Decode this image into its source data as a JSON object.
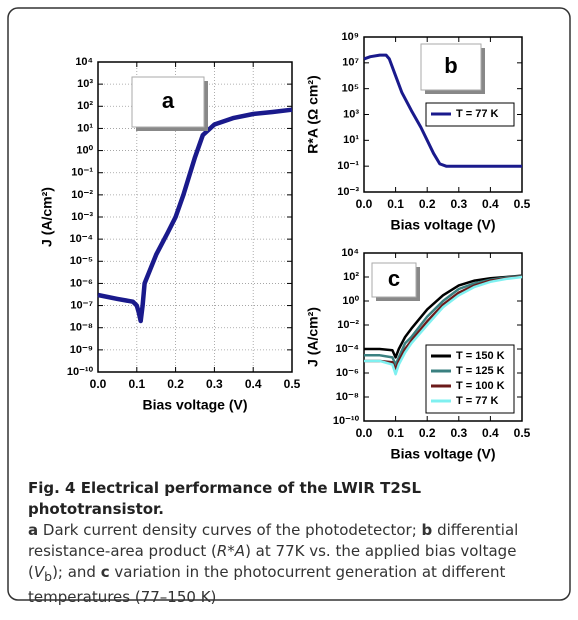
{
  "chart_data": [
    {
      "type": "line",
      "annotation": "a",
      "xlabel": "Bias voltage (V)",
      "ylabel": "J (A/cm²)",
      "log_y": true,
      "grid": true,
      "color": "#1a1a8c",
      "x": [
        0,
        0.05,
        0.09,
        0.1,
        0.105,
        0.11,
        0.115,
        0.12,
        0.15,
        0.18,
        0.2,
        0.22,
        0.25,
        0.27,
        0.3,
        0.35,
        0.4,
        0.45,
        0.5
      ],
      "values": [
        3e-07,
        2e-07,
        1.5e-07,
        1e-07,
        5e-08,
        2e-08,
        1e-07,
        1e-06,
        2e-05,
        0.0002,
        0.001,
        0.01,
        0.5,
        5,
        15,
        30,
        45,
        55,
        70
      ],
      "xlim": [
        0,
        0.5
      ],
      "xticks": [
        {
          "value": 0,
          "label": "0.0"
        },
        0.1,
        0.2,
        0.3,
        0.4,
        0.5
      ],
      "ylim": [
        1e-10,
        10000.0
      ],
      "yticks": [
        {
          "value": 10000.0,
          "label": "10⁴"
        },
        {
          "value": 1000.0,
          "label": "10³"
        },
        {
          "value": 100.0,
          "label": "10²"
        },
        {
          "value": 10.0,
          "label": "10¹"
        },
        {
          "value": 1,
          "label": "10⁰"
        },
        {
          "value": 0.1,
          "label": "10⁻¹"
        },
        {
          "value": 0.01,
          "label": "10⁻²"
        },
        {
          "value": 0.001,
          "label": "10⁻³"
        },
        {
          "value": 0.0001,
          "label": "10⁻⁴"
        },
        {
          "value": 1e-05,
          "label": "10⁻⁵"
        },
        {
          "value": 1e-06,
          "label": "10⁻⁶"
        },
        {
          "value": 1e-07,
          "label": "10⁻⁷"
        },
        {
          "value": 1e-08,
          "label": "10⁻⁸"
        },
        {
          "value": 1e-09,
          "label": "10⁻⁹"
        },
        {
          "value": 1e-10,
          "label": "10⁻¹⁰"
        }
      ]
    },
    {
      "type": "line",
      "annotation": "b",
      "xlabel": "Bias voltage (V)",
      "ylabel": "R*A (Ω cm²)",
      "log_y": true,
      "grid": false,
      "legend": "center right",
      "x": [
        0,
        0.02,
        0.05,
        0.07,
        0.08,
        0.1,
        0.12,
        0.15,
        0.18,
        0.2,
        0.22,
        0.24,
        0.26,
        0.3,
        0.4,
        0.5
      ],
      "series": [
        {
          "name": "T = 77 K",
          "color": "#1a1a8c",
          "values": [
            20000000.0,
            30000000.0,
            40000000.0,
            40000000.0,
            20000000.0,
            1000000.0,
            50000.0,
            2000.0,
            100,
            10,
            1,
            0.15,
            0.1,
            0.1,
            0.1,
            0.1
          ]
        }
      ],
      "xlim": [
        0,
        0.5
      ],
      "xticks": [
        {
          "value": 0,
          "label": "0.0"
        },
        0.1,
        0.2,
        0.3,
        0.4,
        0.5
      ],
      "ylim": [
        0.001,
        1000000000.0
      ],
      "yticks": [
        {
          "value": 1000000000.0,
          "label": "10⁹"
        },
        {
          "value": 10000000.0,
          "label": "10⁷"
        },
        {
          "value": 100000.0,
          "label": "10⁵"
        },
        {
          "value": 1000.0,
          "label": "10³"
        },
        {
          "value": 10.0,
          "label": "10¹"
        },
        {
          "value": 0.1,
          "label": "10⁻¹"
        },
        {
          "value": 0.001,
          "label": "10⁻³"
        }
      ]
    },
    {
      "type": "line",
      "annotation": "c",
      "xlabel": "Bias voltage (V)",
      "ylabel": "J (A/cm²)",
      "log_y": true,
      "grid": false,
      "legend": "lower right",
      "x": [
        0,
        0.05,
        0.09,
        0.1,
        0.11,
        0.13,
        0.15,
        0.2,
        0.25,
        0.3,
        0.35,
        0.4,
        0.45,
        0.5
      ],
      "series": [
        {
          "name": "T = 150 K",
          "color": "#000000",
          "values": [
            0.0001,
            0.0001,
            8e-05,
            2e-05,
            0.0001,
            0.001,
            0.005,
            0.2,
            3,
            20,
            50,
            80,
            100,
            130
          ]
        },
        {
          "name": "T = 125 K",
          "color": "#3a8080",
          "values": [
            3e-05,
            3e-05,
            2e-05,
            5e-06,
            2e-05,
            0.0003,
            0.001,
            0.05,
            1,
            10,
            30,
            60,
            90,
            120
          ]
        },
        {
          "name": "T = 100 K",
          "color": "#6b1a1a",
          "values": [
            1e-05,
            1e-05,
            8e-06,
            2e-06,
            1e-05,
            0.0001,
            0.0005,
            0.02,
            0.5,
            5,
            20,
            50,
            80,
            110
          ]
        },
        {
          "name": "T = 77 K",
          "color": "#7ff0f0",
          "values": [
            1e-05,
            1e-05,
            5e-06,
            8e-07,
            5e-06,
            5e-05,
            0.0003,
            0.01,
            0.3,
            3,
            15,
            40,
            70,
            100
          ]
        }
      ],
      "xlim": [
        0,
        0.5
      ],
      "xticks": [
        {
          "value": 0,
          "label": "0.0"
        },
        0.1,
        0.2,
        0.3,
        0.4,
        0.5
      ],
      "ylim": [
        1e-10,
        10000.0
      ],
      "yticks": [
        {
          "value": 10000.0,
          "label": "10⁴"
        },
        {
          "value": 100.0,
          "label": "10²"
        },
        {
          "value": 1,
          "label": "10⁰"
        },
        {
          "value": 0.01,
          "label": "10⁻²"
        },
        {
          "value": 0.0001,
          "label": "10⁻⁴"
        },
        {
          "value": 1e-06,
          "label": "10⁻⁶"
        },
        {
          "value": 1e-08,
          "label": "10⁻⁸"
        },
        {
          "value": 1e-10,
          "label": "10⁻¹⁰"
        }
      ]
    }
  ],
  "caption": {
    "title": "Fig. 4 Electrical performance of the LWIR T2SL phototransistor.",
    "body": [
      "a",
      " Dark current density curves of the photodetector; ",
      "b",
      " differential resistance-area product (",
      "R*A",
      ") at 77K vs. the applied bias voltage (",
      "V",
      "b",
      "); and ",
      "c",
      " variation in the photocurrent generation at different temperatures (77–150 K)"
    ]
  }
}
